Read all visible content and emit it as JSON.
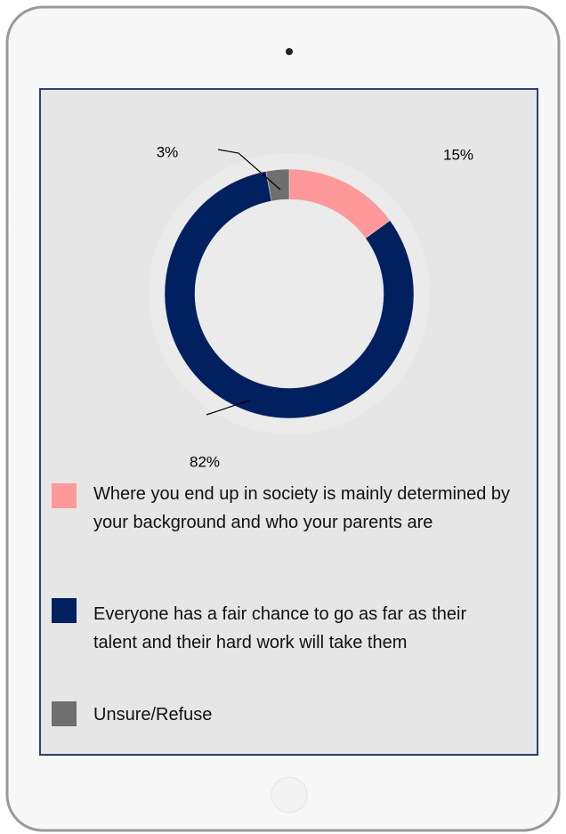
{
  "chart_data": {
    "type": "pie",
    "donut": true,
    "categories": [
      "Where you end up in society is mainly determined by your background and who your parents are",
      "Everyone has a fair chance to go as far as their talent and their hard work will take them",
      "Unsure/Refuse"
    ],
    "values": [
      15,
      82,
      3
    ],
    "value_labels": [
      "15%",
      "82%",
      "3%"
    ],
    "colors": [
      "#ff9999",
      "#002060",
      "#6f6f6f"
    ]
  }
}
